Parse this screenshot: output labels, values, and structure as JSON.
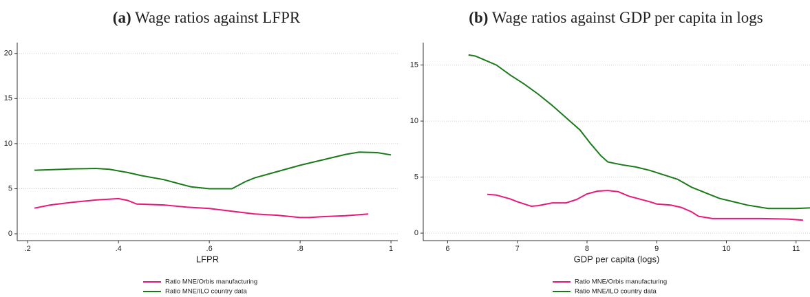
{
  "chart_data": [
    {
      "type": "line",
      "title_label": "(a)",
      "title": "Wage ratios against LFPR",
      "xlabel": "LFPR",
      "xlim": [
        0.177,
        1.015
      ],
      "ylim": [
        -0.76,
        21.2
      ],
      "xticks": [
        {
          "value": 0.2,
          "label": ".2"
        },
        {
          "value": 0.4,
          "label": ".4"
        },
        {
          "value": 0.6,
          "label": ".6"
        },
        {
          "value": 0.8,
          "label": ".8"
        },
        1
      ],
      "yticks": [
        0,
        5,
        10,
        15,
        20
      ],
      "grid": true,
      "series": [
        {
          "name": "Ratio MNE/Orbis manufacturing",
          "color": "#e8177d",
          "x": [
            0.215,
            0.25,
            0.3,
            0.35,
            0.4,
            0.42,
            0.44,
            0.5,
            0.55,
            0.6,
            0.65,
            0.7,
            0.75,
            0.8,
            0.82,
            0.85,
            0.9,
            0.95
          ],
          "values": [
            2.85,
            3.2,
            3.5,
            3.75,
            3.9,
            3.7,
            3.3,
            3.2,
            2.95,
            2.8,
            2.5,
            2.2,
            2.05,
            1.8,
            1.8,
            1.9,
            2.0,
            2.2
          ]
        },
        {
          "name": "Ratio MNE/ILO country data",
          "color": "#1a7a1a",
          "x": [
            0.215,
            0.25,
            0.3,
            0.35,
            0.38,
            0.42,
            0.45,
            0.5,
            0.53,
            0.56,
            0.6,
            0.65,
            0.68,
            0.7,
            0.75,
            0.8,
            0.85,
            0.9,
            0.93,
            0.97,
            1.0
          ],
          "values": [
            7.05,
            7.1,
            7.2,
            7.25,
            7.15,
            6.8,
            6.45,
            6.0,
            5.6,
            5.2,
            5.0,
            5.0,
            5.8,
            6.2,
            6.9,
            7.6,
            8.2,
            8.8,
            9.05,
            9.0,
            8.75
          ]
        }
      ]
    },
    {
      "type": "line",
      "title_label": "(b)",
      "title": "Wage ratios against GDP per capita in logs",
      "xlabel": "GDP per capita (logs)",
      "xlim": [
        5.65,
        11.2
      ],
      "ylim": [
        -0.67,
        17
      ],
      "xticks": [
        6,
        7,
        8,
        9,
        10,
        11
      ],
      "yticks": [
        0,
        5,
        10,
        15
      ],
      "grid": true,
      "series": [
        {
          "name": "Ratio MNE/Orbis manufacturing",
          "color": "#e8177d",
          "x": [
            6.57,
            6.7,
            6.9,
            7.0,
            7.2,
            7.3,
            7.5,
            7.7,
            7.85,
            8.0,
            8.15,
            8.3,
            8.45,
            8.6,
            8.9,
            9.0,
            9.2,
            9.35,
            9.5,
            9.6,
            9.8,
            10.0,
            10.5,
            10.9,
            11.1
          ],
          "values": [
            3.45,
            3.4,
            3.05,
            2.8,
            2.4,
            2.45,
            2.7,
            2.7,
            3.0,
            3.5,
            3.75,
            3.8,
            3.7,
            3.3,
            2.8,
            2.6,
            2.5,
            2.3,
            1.9,
            1.5,
            1.3,
            1.3,
            1.3,
            1.25,
            1.15
          ]
        },
        {
          "name": "Ratio MNE/ILO country data",
          "color": "#1a7a1a",
          "x": [
            6.3,
            6.4,
            6.55,
            6.7,
            6.9,
            7.1,
            7.3,
            7.5,
            7.7,
            7.9,
            8.05,
            8.2,
            8.3,
            8.5,
            8.7,
            8.9,
            9.1,
            9.3,
            9.5,
            9.7,
            9.9,
            10.1,
            10.3,
            10.6,
            11.0,
            11.2
          ],
          "values": [
            15.9,
            15.8,
            15.4,
            15.0,
            14.1,
            13.3,
            12.4,
            11.4,
            10.3,
            9.2,
            8.0,
            6.9,
            6.35,
            6.1,
            5.9,
            5.6,
            5.2,
            4.8,
            4.1,
            3.6,
            3.1,
            2.8,
            2.5,
            2.2,
            2.2,
            2.25
          ]
        }
      ]
    }
  ]
}
